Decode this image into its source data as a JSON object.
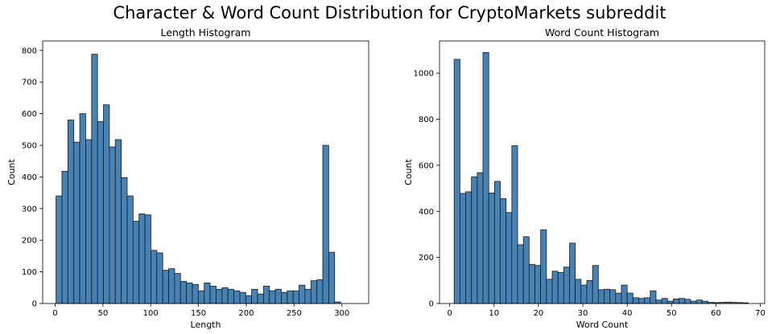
{
  "suptitle": "Character & Word Count Distribution for CryptoMarkets subreddit",
  "chart_data": [
    {
      "type": "bar",
      "title": "Length Histogram",
      "xlabel": "Length",
      "ylabel": "Count",
      "xlim": [
        -13,
        328
      ],
      "ylim": [
        0,
        830
      ],
      "xticks": [
        0,
        50,
        100,
        150,
        200,
        250,
        300
      ],
      "yticks": [
        0,
        100,
        200,
        300,
        400,
        500,
        600,
        700,
        800
      ],
      "bin_start": 1,
      "bin_width": 6.2,
      "values": [
        340,
        418,
        580,
        510,
        600,
        518,
        788,
        575,
        628,
        495,
        518,
        398,
        340,
        260,
        283,
        280,
        168,
        160,
        105,
        110,
        95,
        70,
        65,
        60,
        40,
        65,
        55,
        45,
        50,
        45,
        40,
        35,
        25,
        45,
        30,
        55,
        40,
        45,
        35,
        40,
        40,
        58,
        45,
        72,
        75,
        500,
        162,
        5
      ]
    },
    {
      "type": "bar",
      "title": "Word Count Histogram",
      "xlabel": "Word Count",
      "ylabel": "Count",
      "xlim": [
        -2.3,
        71
      ],
      "ylim": [
        0,
        1140
      ],
      "xticks": [
        0,
        10,
        20,
        30,
        40,
        50,
        60,
        70
      ],
      "yticks": [
        0,
        200,
        400,
        600,
        800,
        1000
      ],
      "bin_start": 1,
      "bin_width": 1.3,
      "values": [
        1060,
        478,
        485,
        550,
        568,
        1090,
        480,
        530,
        455,
        395,
        685,
        255,
        290,
        170,
        165,
        320,
        105,
        140,
        135,
        158,
        262,
        105,
        80,
        100,
        165,
        60,
        62,
        60,
        45,
        80,
        45,
        25,
        22,
        25,
        55,
        15,
        22,
        10,
        20,
        22,
        18,
        10,
        15,
        10,
        5,
        4,
        5,
        6,
        5,
        4,
        3
      ]
    }
  ]
}
